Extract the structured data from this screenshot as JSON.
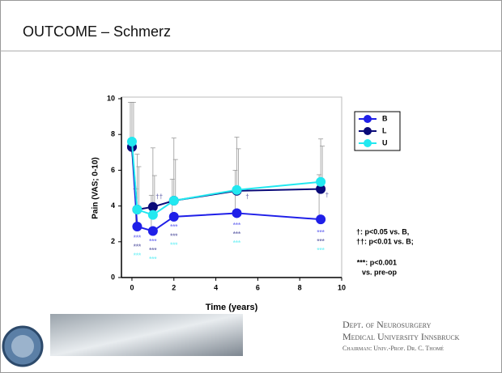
{
  "slide": {
    "title": "OUTCOME – Schmerz",
    "footer": [
      "Dept. of Neurosurgery",
      "Medical University Innsbruck",
      "Chairman: Univ.-Prof. Dr. C. Thomé"
    ]
  },
  "chart_data": {
    "type": "line",
    "x_label": "Time (years)",
    "y_label": "Pain (VAS; 0-10)",
    "x": [
      0,
      0.25,
      1,
      2,
      5,
      9
    ],
    "xlim": [
      -0.5,
      10
    ],
    "ylim": [
      0,
      10
    ],
    "xticks": [
      0,
      2,
      4,
      6,
      8,
      10
    ],
    "yticks": [
      0,
      2,
      4,
      6,
      8,
      10
    ],
    "legend": "top-right",
    "series": [
      {
        "name": "B",
        "color": "#1f1fe8",
        "values": [
          7.3,
          2.85,
          2.6,
          3.4,
          3.6,
          3.25
        ],
        "errors": [
          2.5,
          2.1,
          2.0,
          2.1,
          2.4,
          2.5
        ]
      },
      {
        "name": "L",
        "color": "#0a0a78",
        "values": [
          7.3,
          3.8,
          3.95,
          4.3,
          4.85,
          4.95
        ],
        "errors": [
          2.5,
          3.1,
          3.3,
          3.5,
          3.0,
          2.8
        ]
      },
      {
        "name": "U",
        "color": "#22e8f0",
        "values": [
          7.6,
          3.8,
          3.5,
          4.3,
          4.9,
          5.35
        ],
        "errors": [
          2.2,
          2.4,
          2.2,
          2.3,
          2.3,
          2.0
        ]
      }
    ],
    "annotations": [
      "†: p<0.05 vs. B,",
      "††: p<0.01 vs. B;",
      "***: p<0.001",
      "vs. pre-op"
    ],
    "markers": [
      {
        "text": "***",
        "x": 0.25,
        "y": 2.2,
        "series": 0
      },
      {
        "text": "***",
        "x": 0.25,
        "y": 1.7,
        "series": 1
      },
      {
        "text": "***",
        "x": 0.25,
        "y": 1.2,
        "series": 2
      },
      {
        "text": "***",
        "x": 1,
        "y": 2.0,
        "series": 0
      },
      {
        "text": "***",
        "x": 1,
        "y": 1.5,
        "series": 1
      },
      {
        "text": "***",
        "x": 1,
        "y": 1.0,
        "series": 2
      },
      {
        "text": "***",
        "x": 2,
        "y": 2.8,
        "series": 0
      },
      {
        "text": "***",
        "x": 2,
        "y": 2.3,
        "series": 1
      },
      {
        "text": "***",
        "x": 2,
        "y": 1.8,
        "series": 2
      },
      {
        "text": "***",
        "x": 5,
        "y": 2.9,
        "series": 0
      },
      {
        "text": "***",
        "x": 5,
        "y": 2.4,
        "series": 1
      },
      {
        "text": "***",
        "x": 5,
        "y": 1.9,
        "series": 2
      },
      {
        "text": "***",
        "x": 9,
        "y": 2.5,
        "series": 0
      },
      {
        "text": "***",
        "x": 9,
        "y": 2.0,
        "series": 1
      },
      {
        "text": "***",
        "x": 9,
        "y": 1.5,
        "series": 2
      },
      {
        "text": "††",
        "x": 1.3,
        "y": 4.5,
        "series": 1
      },
      {
        "text": "†",
        "x": 5.5,
        "y": 4.5,
        "series": 1
      },
      {
        "text": "†",
        "x": 9.3,
        "y": 4.6,
        "series": 1
      }
    ]
  }
}
